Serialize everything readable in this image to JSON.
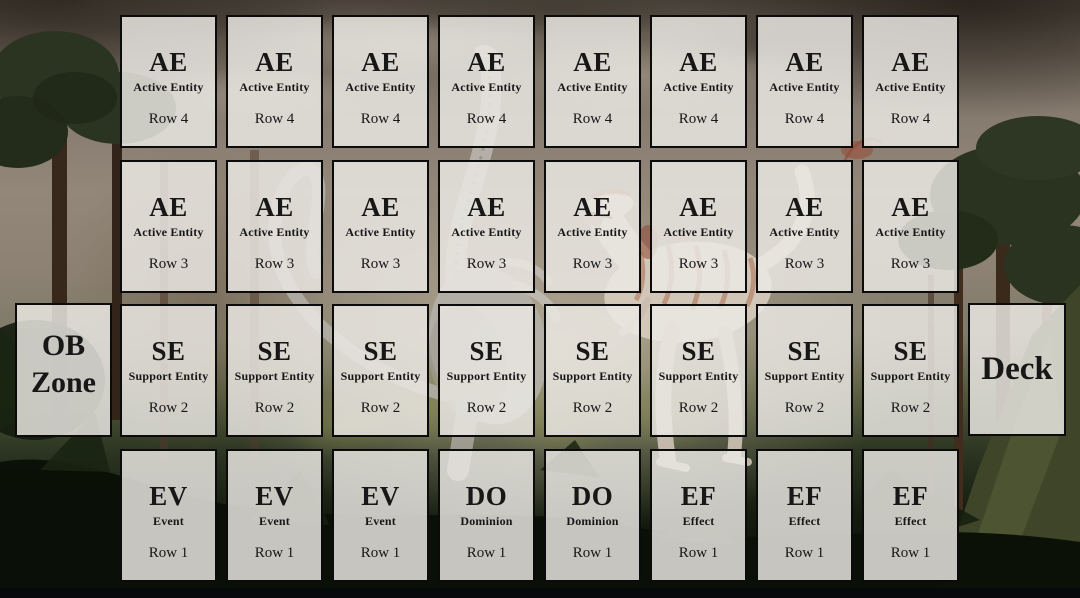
{
  "colors": {
    "cell_fill": "#EBE8E4D6",
    "cell_border": "#0B0B0B",
    "cell_text": "#171717"
  },
  "zones": {
    "ob": {
      "line1": "OB",
      "line2": "Zone"
    },
    "deck": {
      "label": "Deck"
    }
  },
  "rows": [
    {
      "id": "row-4",
      "cells": [
        {
          "abbr": "AE",
          "type": "Active Entity",
          "row_label": "Row 4"
        },
        {
          "abbr": "AE",
          "type": "Active Entity",
          "row_label": "Row 4"
        },
        {
          "abbr": "AE",
          "type": "Active Entity",
          "row_label": "Row 4"
        },
        {
          "abbr": "AE",
          "type": "Active Entity",
          "row_label": "Row 4"
        },
        {
          "abbr": "AE",
          "type": "Active Entity",
          "row_label": "Row 4"
        },
        {
          "abbr": "AE",
          "type": "Active Entity",
          "row_label": "Row 4"
        },
        {
          "abbr": "AE",
          "type": "Active Entity",
          "row_label": "Row 4"
        },
        {
          "abbr": "AE",
          "type": "Active Entity",
          "row_label": "Row 4"
        }
      ]
    },
    {
      "id": "row-3",
      "cells": [
        {
          "abbr": "AE",
          "type": "Active Entity",
          "row_label": "Row 3"
        },
        {
          "abbr": "AE",
          "type": "Active Entity",
          "row_label": "Row 3"
        },
        {
          "abbr": "AE",
          "type": "Active Entity",
          "row_label": "Row 3"
        },
        {
          "abbr": "AE",
          "type": "Active Entity",
          "row_label": "Row 3"
        },
        {
          "abbr": "AE",
          "type": "Active Entity",
          "row_label": "Row 3"
        },
        {
          "abbr": "AE",
          "type": "Active Entity",
          "row_label": "Row 3"
        },
        {
          "abbr": "AE",
          "type": "Active Entity",
          "row_label": "Row 3"
        },
        {
          "abbr": "AE",
          "type": "Active Entity",
          "row_label": "Row 3"
        }
      ]
    },
    {
      "id": "row-2",
      "cells": [
        {
          "abbr": "SE",
          "type": "Support Entity",
          "row_label": "Row 2"
        },
        {
          "abbr": "SE",
          "type": "Support Entity",
          "row_label": "Row 2"
        },
        {
          "abbr": "SE",
          "type": "Support Entity",
          "row_label": "Row 2"
        },
        {
          "abbr": "SE",
          "type": "Support Entity",
          "row_label": "Row 2"
        },
        {
          "abbr": "SE",
          "type": "Support Entity",
          "row_label": "Row 2"
        },
        {
          "abbr": "SE",
          "type": "Support Entity",
          "row_label": "Row 2"
        },
        {
          "abbr": "SE",
          "type": "Support Entity",
          "row_label": "Row 2"
        },
        {
          "abbr": "SE",
          "type": "Support Entity",
          "row_label": "Row 2"
        }
      ]
    },
    {
      "id": "row-1",
      "cells": [
        {
          "abbr": "EV",
          "type": "Event",
          "row_label": "Row 1"
        },
        {
          "abbr": "EV",
          "type": "Event",
          "row_label": "Row 1"
        },
        {
          "abbr": "EV",
          "type": "Event",
          "row_label": "Row 1"
        },
        {
          "abbr": "DO",
          "type": "Dominion",
          "row_label": "Row 1"
        },
        {
          "abbr": "DO",
          "type": "Dominion",
          "row_label": "Row 1"
        },
        {
          "abbr": "EF",
          "type": "Effect",
          "row_label": "Row 1"
        },
        {
          "abbr": "EF",
          "type": "Effect",
          "row_label": "Row 1"
        },
        {
          "abbr": "EF",
          "type": "Effect",
          "row_label": "Row 1"
        }
      ]
    }
  ]
}
